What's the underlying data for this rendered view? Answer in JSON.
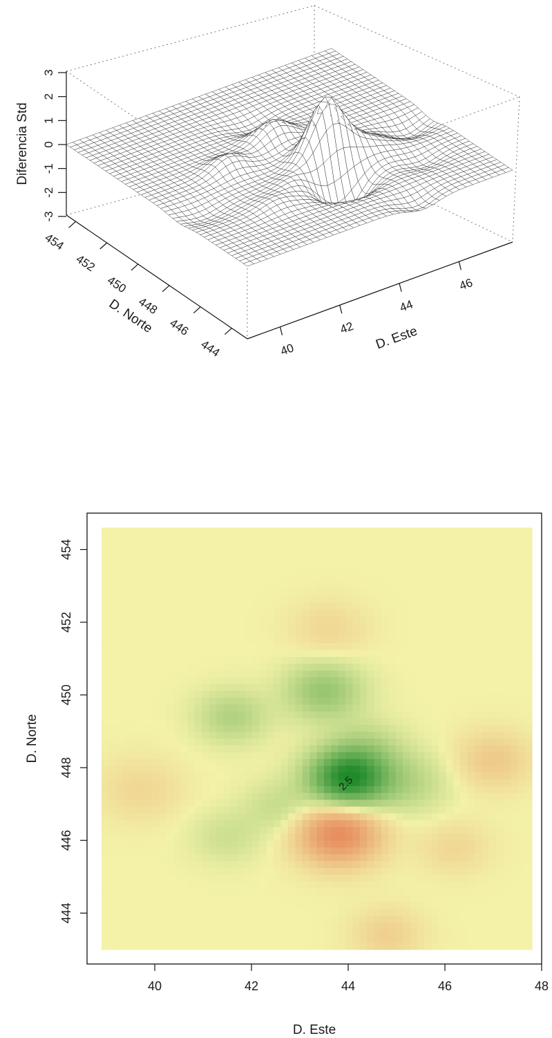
{
  "chart_data": [
    {
      "type": "surface3d",
      "zlabel": "Diferencia Std",
      "xlabel": "D. Norte",
      "ylabel": "D. Este",
      "z_ticks": [
        "3",
        "2",
        "1",
        "0",
        "-1",
        "-2",
        "-3"
      ],
      "norte_ticks": [
        "454",
        "452",
        "450",
        "448",
        "446",
        "444"
      ],
      "este_ticks": [
        "40",
        "42",
        "44",
        "46"
      ],
      "norte_range": [
        443,
        454.6
      ],
      "este_range": [
        38.9,
        47.8
      ],
      "z_range": [
        -3,
        3
      ],
      "features": [
        {
          "este": 44.0,
          "norte": 447.7,
          "z": 2.6,
          "spread": 0.55
        },
        {
          "este": 43.8,
          "norte": 446.2,
          "z": -1.6,
          "spread": 0.6
        },
        {
          "este": 43.5,
          "norte": 450.1,
          "z": 0.9,
          "spread": 0.55
        },
        {
          "este": 41.6,
          "norte": 449.4,
          "z": 0.6,
          "spread": 0.5
        },
        {
          "este": 47.0,
          "norte": 448.2,
          "z": -0.5,
          "spread": 0.55
        },
        {
          "este": 45.2,
          "norte": 447.6,
          "z": 0.5,
          "spread": 0.6
        },
        {
          "este": 44.4,
          "norte": 448.6,
          "z": 0.4,
          "spread": 0.5
        },
        {
          "este": 43.6,
          "norte": 451.8,
          "z": -0.3,
          "spread": 0.55
        },
        {
          "este": 39.7,
          "norte": 447.4,
          "z": -0.3,
          "spread": 0.6
        },
        {
          "este": 44.8,
          "norte": 443.4,
          "z": -0.4,
          "spread": 0.5
        },
        {
          "este": 42.6,
          "norte": 446.9,
          "z": 0.4,
          "spread": 0.5
        },
        {
          "este": 46.2,
          "norte": 445.8,
          "z": -0.3,
          "spread": 0.5
        },
        {
          "este": 41.5,
          "norte": 446.1,
          "z": 0.3,
          "spread": 0.5
        }
      ]
    },
    {
      "type": "heatmap",
      "xlabel": "D. Este",
      "ylabel": "D. Norte",
      "x_ticks": [
        "40",
        "42",
        "44",
        "46",
        "48"
      ],
      "y_ticks": [
        "444",
        "446",
        "448",
        "450",
        "452",
        "454"
      ],
      "xlim": [
        38.6,
        48.0
      ],
      "ylim": [
        442.6,
        455.0
      ],
      "data_extent_x": [
        38.9,
        47.8
      ],
      "data_extent_y": [
        443.0,
        454.6
      ],
      "annotation": {
        "text": "2.5",
        "x": 44.0,
        "y": 447.5
      },
      "color_low": "#e05a38",
      "color_mid": "#f3f2a8",
      "color_high": "#1f8a2a"
    }
  ]
}
